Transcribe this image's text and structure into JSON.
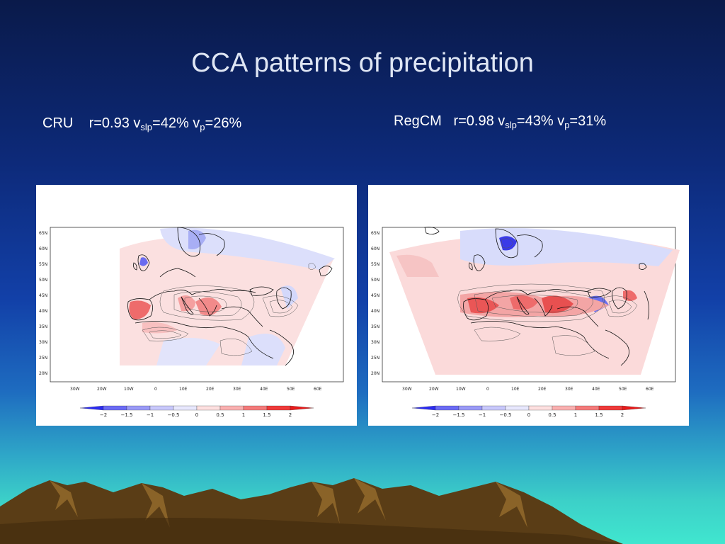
{
  "slide": {
    "title": "CCA patterns of precipitation"
  },
  "captions": {
    "left": {
      "name": "CRU",
      "stats_r": "r=0.93 v",
      "sub1": "slp",
      "mid": "=42% v",
      "sub2": "p",
      "tail": "=26%"
    },
    "right": {
      "name": "RegCM",
      "stats_r": "r=0.98 v",
      "sub1": "slp",
      "mid": "=43% v",
      "sub2": "p",
      "tail": "=31%"
    }
  },
  "map_axes": {
    "lat_labels": [
      "65N",
      "60N",
      "55N",
      "50N",
      "45N",
      "40N",
      "35N",
      "30N",
      "25N",
      "20N"
    ],
    "lon_labels": [
      "30W",
      "20W",
      "10W",
      "0",
      "10E",
      "20E",
      "30E",
      "40E",
      "50E",
      "60E"
    ]
  },
  "colorbar": {
    "labels": [
      "−2",
      "−1.5",
      "−1",
      "−0.5",
      "0",
      "0.5",
      "1",
      "1.5",
      "2"
    ],
    "colors": [
      "#2b2bf2",
      "#6b6bf5",
      "#9a9af7",
      "#c8c8fb",
      "#e8e8fd",
      "#fde0e0",
      "#fab0b0",
      "#f57a7a",
      "#f03a3a",
      "#e81a1a"
    ]
  },
  "colors": {
    "neg_light": "#d8dcfb",
    "pos_light": "#fcd2d2",
    "pos_strong": "#ef6a6a",
    "neg_strong": "#3a3ae8"
  }
}
